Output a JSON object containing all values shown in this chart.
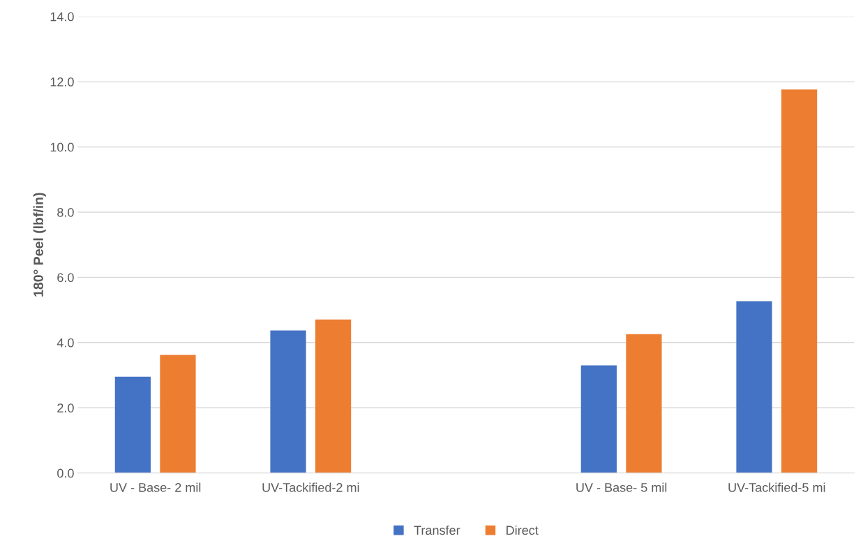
{
  "chart_data": {
    "type": "bar",
    "ylabel": "180° Peel (lbf/in)",
    "categories": [
      "UV - Base- 2 mil",
      "UV-Tackified-2 mi",
      null,
      "UV - Base- 5 mil",
      "UV-Tackified-5 mi"
    ],
    "series": [
      {
        "name": "Transfer",
        "color": "#4472c4",
        "values": [
          2.95,
          4.37,
          null,
          3.3,
          5.27
        ]
      },
      {
        "name": "Direct",
        "color": "#ed7d31",
        "values": [
          3.62,
          4.71,
          null,
          4.26,
          11.76
        ]
      }
    ],
    "ylim": [
      0,
      14
    ],
    "yticks": [
      {
        "value": 0,
        "label": "0.0"
      },
      {
        "value": 2,
        "label": "2.0"
      },
      {
        "value": 4,
        "label": "4.0"
      },
      {
        "value": 6,
        "label": "6.0"
      },
      {
        "value": 8,
        "label": "8.0"
      },
      {
        "value": 10,
        "label": "10.0"
      },
      {
        "value": 12,
        "label": "12.0"
      },
      {
        "value": 14,
        "label": "14.0"
      }
    ],
    "grid": "y",
    "legend": "bottom"
  }
}
